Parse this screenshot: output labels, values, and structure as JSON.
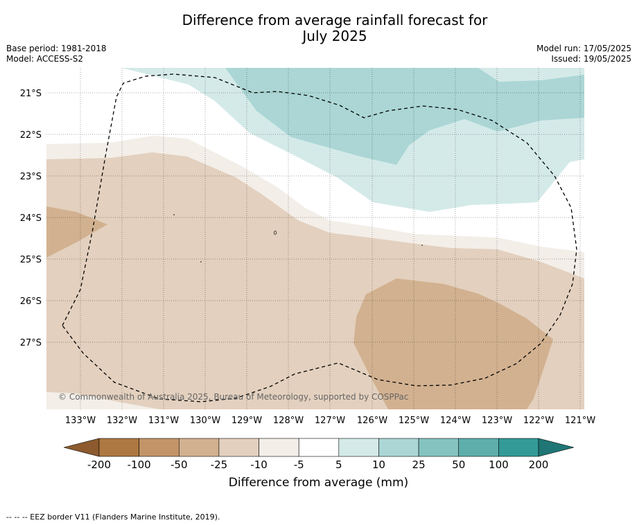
{
  "title_line1": "Difference from average rainfall forecast for",
  "title_line2": "July 2025",
  "meta_left": {
    "base_period": "Base period: 1981-2018",
    "model": "Model: ACCESS-S2"
  },
  "meta_right": {
    "model_run": "Model run: 17/05/2025",
    "issued": "Issued: 19/05/2025"
  },
  "map": {
    "lon_labels": [
      "133°W",
      "132°W",
      "131°W",
      "130°W",
      "129°W",
      "128°W",
      "127°W",
      "126°W",
      "125°W",
      "124°W",
      "123°W",
      "122°W",
      "121°W"
    ],
    "lat_labels": [
      "21°S",
      "22°S",
      "23°S",
      "24°S",
      "25°S",
      "26°S",
      "27°S"
    ],
    "copyright": "© Commonwealth of Australia 2025, Bureau of Meteorology, supported by COSPPac",
    "boundary_style": "dashed EEZ border"
  },
  "colorbar": {
    "ticks": [
      "-200",
      "-100",
      "-50",
      "-25",
      "-10",
      "-5",
      "5",
      "10",
      "25",
      "50",
      "100",
      "200"
    ],
    "colors": [
      "#ad7841",
      "#c29467",
      "#d2b190",
      "#e3d0be",
      "#f3eee8",
      "#ffffff",
      "#d4eae9",
      "#abd6d5",
      "#85c3c1",
      "#5eaeac",
      "#339a97"
    ],
    "end_colors": {
      "low": "#8c5a2e",
      "high": "#1f7674"
    },
    "label": "Difference from average (mm)"
  },
  "footnote": "--  --  -- EEZ border V11 (Flanders Marine Institute, 2019)."
}
